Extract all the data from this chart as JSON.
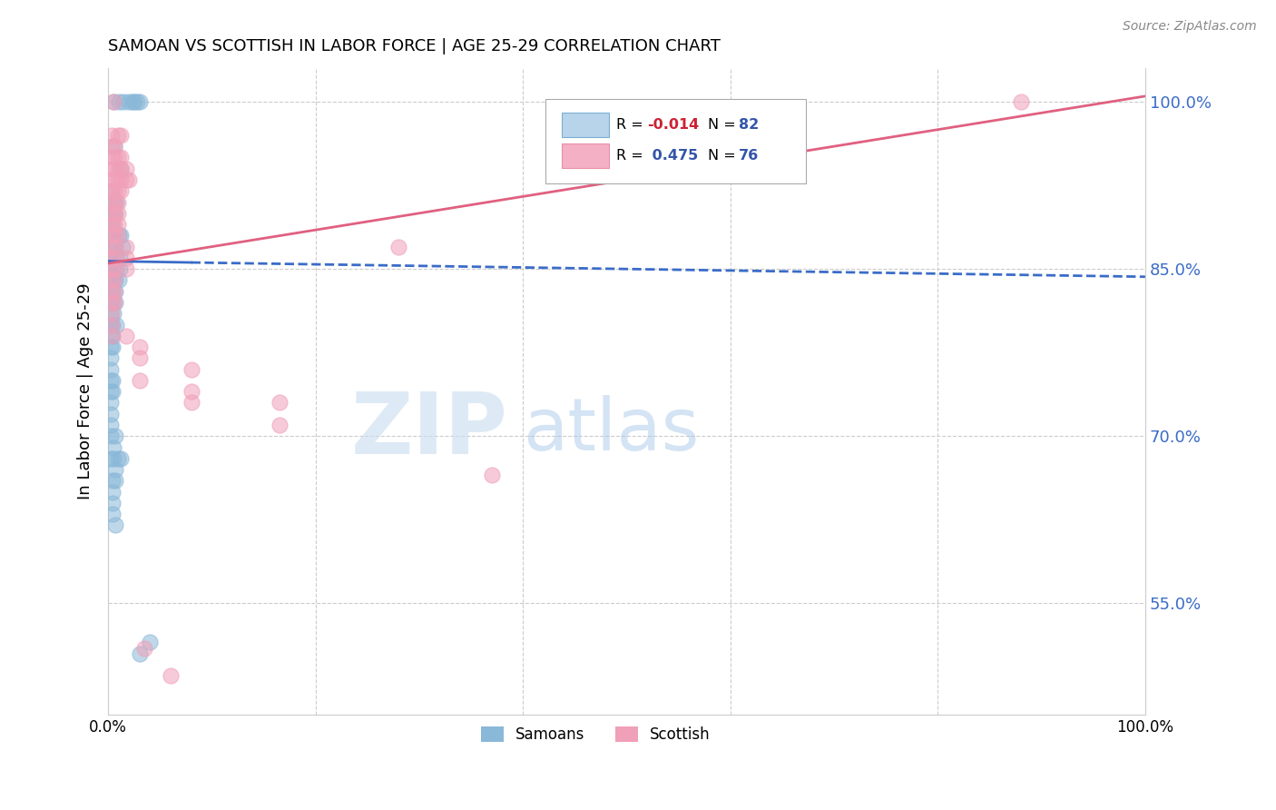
{
  "title": "SAMOAN VS SCOTTISH IN LABOR FORCE | AGE 25-29 CORRELATION CHART",
  "source": "Source: ZipAtlas.com",
  "ylabel": "In Labor Force | Age 25-29",
  "xlim": [
    0.0,
    1.0
  ],
  "ylim": [
    0.45,
    1.03
  ],
  "ytick_vals": [
    0.55,
    0.7,
    0.85,
    1.0
  ],
  "grid_color": "#cccccc",
  "background_color": "#ffffff",
  "samoans_color": "#8ab8d8",
  "scottish_color": "#f0a0b8",
  "samoans_line_color": "#3a6cc8",
  "scottish_line_color": "#e06080",
  "watermark_zip": "ZIP",
  "watermark_atlas": "atlas",
  "samoans_data": [
    [
      0.005,
      1.0
    ],
    [
      0.01,
      1.0
    ],
    [
      0.015,
      1.0
    ],
    [
      0.02,
      1.0
    ],
    [
      0.023,
      1.0
    ],
    [
      0.025,
      1.0
    ],
    [
      0.028,
      1.0
    ],
    [
      0.03,
      1.0
    ],
    [
      0.006,
      0.96
    ],
    [
      0.012,
      0.94
    ],
    [
      0.003,
      0.92
    ],
    [
      0.006,
      0.91
    ],
    [
      0.008,
      0.91
    ],
    [
      0.003,
      0.9
    ],
    [
      0.005,
      0.9
    ],
    [
      0.007,
      0.9
    ],
    [
      0.002,
      0.89
    ],
    [
      0.004,
      0.89
    ],
    [
      0.003,
      0.88
    ],
    [
      0.005,
      0.88
    ],
    [
      0.01,
      0.88
    ],
    [
      0.012,
      0.88
    ],
    [
      0.003,
      0.87
    ],
    [
      0.005,
      0.87
    ],
    [
      0.007,
      0.87
    ],
    [
      0.014,
      0.87
    ],
    [
      0.003,
      0.86
    ],
    [
      0.006,
      0.86
    ],
    [
      0.008,
      0.86
    ],
    [
      0.011,
      0.86
    ],
    [
      0.002,
      0.85
    ],
    [
      0.005,
      0.85
    ],
    [
      0.008,
      0.85
    ],
    [
      0.011,
      0.85
    ],
    [
      0.002,
      0.84
    ],
    [
      0.004,
      0.84
    ],
    [
      0.007,
      0.84
    ],
    [
      0.01,
      0.84
    ],
    [
      0.002,
      0.83
    ],
    [
      0.004,
      0.83
    ],
    [
      0.007,
      0.83
    ],
    [
      0.002,
      0.82
    ],
    [
      0.004,
      0.82
    ],
    [
      0.007,
      0.82
    ],
    [
      0.002,
      0.81
    ],
    [
      0.005,
      0.81
    ],
    [
      0.002,
      0.8
    ],
    [
      0.004,
      0.8
    ],
    [
      0.008,
      0.8
    ],
    [
      0.002,
      0.79
    ],
    [
      0.004,
      0.79
    ],
    [
      0.002,
      0.78
    ],
    [
      0.004,
      0.78
    ],
    [
      0.002,
      0.77
    ],
    [
      0.002,
      0.76
    ],
    [
      0.002,
      0.75
    ],
    [
      0.004,
      0.75
    ],
    [
      0.002,
      0.74
    ],
    [
      0.004,
      0.74
    ],
    [
      0.002,
      0.73
    ],
    [
      0.002,
      0.72
    ],
    [
      0.002,
      0.71
    ],
    [
      0.002,
      0.7
    ],
    [
      0.007,
      0.7
    ],
    [
      0.005,
      0.69
    ],
    [
      0.002,
      0.68
    ],
    [
      0.005,
      0.68
    ],
    [
      0.009,
      0.68
    ],
    [
      0.007,
      0.67
    ],
    [
      0.004,
      0.66
    ],
    [
      0.007,
      0.66
    ],
    [
      0.004,
      0.65
    ],
    [
      0.004,
      0.64
    ],
    [
      0.004,
      0.63
    ],
    [
      0.007,
      0.62
    ],
    [
      0.04,
      0.515
    ],
    [
      0.03,
      0.505
    ],
    [
      0.012,
      0.68
    ]
  ],
  "scottish_data": [
    [
      0.005,
      1.0
    ],
    [
      0.88,
      1.0
    ],
    [
      0.53,
      0.98
    ],
    [
      0.003,
      0.97
    ],
    [
      0.009,
      0.97
    ],
    [
      0.012,
      0.97
    ],
    [
      0.003,
      0.96
    ],
    [
      0.006,
      0.96
    ],
    [
      0.003,
      0.95
    ],
    [
      0.006,
      0.95
    ],
    [
      0.009,
      0.95
    ],
    [
      0.012,
      0.95
    ],
    [
      0.003,
      0.94
    ],
    [
      0.006,
      0.94
    ],
    [
      0.009,
      0.94
    ],
    [
      0.012,
      0.94
    ],
    [
      0.017,
      0.94
    ],
    [
      0.003,
      0.93
    ],
    [
      0.006,
      0.93
    ],
    [
      0.009,
      0.93
    ],
    [
      0.012,
      0.93
    ],
    [
      0.017,
      0.93
    ],
    [
      0.02,
      0.93
    ],
    [
      0.003,
      0.92
    ],
    [
      0.006,
      0.92
    ],
    [
      0.009,
      0.92
    ],
    [
      0.012,
      0.92
    ],
    [
      0.003,
      0.91
    ],
    [
      0.006,
      0.91
    ],
    [
      0.009,
      0.91
    ],
    [
      0.003,
      0.9
    ],
    [
      0.006,
      0.9
    ],
    [
      0.009,
      0.9
    ],
    [
      0.003,
      0.89
    ],
    [
      0.006,
      0.89
    ],
    [
      0.009,
      0.89
    ],
    [
      0.003,
      0.88
    ],
    [
      0.006,
      0.88
    ],
    [
      0.009,
      0.88
    ],
    [
      0.003,
      0.87
    ],
    [
      0.006,
      0.87
    ],
    [
      0.017,
      0.87
    ],
    [
      0.28,
      0.87
    ],
    [
      0.003,
      0.86
    ],
    [
      0.006,
      0.86
    ],
    [
      0.017,
      0.86
    ],
    [
      0.003,
      0.85
    ],
    [
      0.006,
      0.85
    ],
    [
      0.017,
      0.85
    ],
    [
      0.003,
      0.84
    ],
    [
      0.006,
      0.84
    ],
    [
      0.003,
      0.83
    ],
    [
      0.006,
      0.83
    ],
    [
      0.003,
      0.82
    ],
    [
      0.006,
      0.82
    ],
    [
      0.003,
      0.81
    ],
    [
      0.003,
      0.8
    ],
    [
      0.003,
      0.79
    ],
    [
      0.017,
      0.79
    ],
    [
      0.03,
      0.78
    ],
    [
      0.03,
      0.77
    ],
    [
      0.08,
      0.76
    ],
    [
      0.03,
      0.75
    ],
    [
      0.08,
      0.74
    ],
    [
      0.08,
      0.73
    ],
    [
      0.165,
      0.73
    ],
    [
      0.165,
      0.71
    ],
    [
      0.37,
      0.665
    ],
    [
      0.035,
      0.51
    ],
    [
      0.06,
      0.485
    ]
  ]
}
